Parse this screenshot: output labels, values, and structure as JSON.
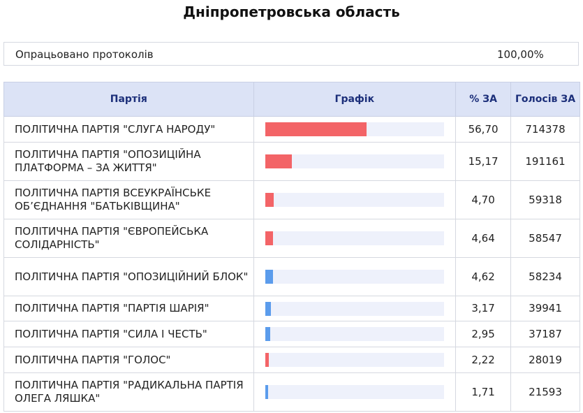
{
  "header": {
    "title": "Дніпропетровська область"
  },
  "summary": {
    "label": "Опрацьовано протоколів",
    "value": "100,00%"
  },
  "table": {
    "columns": [
      "Партія",
      "Графік",
      "% ЗА",
      "Голосів ЗА"
    ],
    "bar_range": [
      0,
      100
    ],
    "rows": [
      {
        "party": "ПОЛІТИЧНА ПАРТІЯ \"СЛУГА НАРОДУ\"",
        "percent": {
          "value": 56.7,
          "label": "56,70"
        },
        "votes": 714378,
        "bar_color": "#f36467"
      },
      {
        "party": "ПОЛІТИЧНА ПАРТІЯ \"ОПОЗИЦІЙНА ПЛАТФОРМА – ЗА ЖИТТЯ\"",
        "percent": {
          "value": 15.17,
          "label": "15,17"
        },
        "votes": 191161,
        "bar_color": "#f36467"
      },
      {
        "party": "ПОЛІТИЧНА ПАРТІЯ ВСЕУКРАЇНСЬКЕ ОБʼЄДНАННЯ \"БАТЬКІВЩИНА\"",
        "percent": {
          "value": 4.7,
          "label": "4,70"
        },
        "votes": 59318,
        "bar_color": "#f36467"
      },
      {
        "party": "ПОЛІТИЧНА ПАРТІЯ \"ЄВРОПЕЙСЬКА СОЛІДАРНІСТЬ\"",
        "percent": {
          "value": 4.64,
          "label": "4,64"
        },
        "votes": 58547,
        "bar_color": "#f36467"
      },
      {
        "party": "ПОЛІТИЧНА ПАРТІЯ \"ОПОЗИЦІЙНИЙ БЛОК\"",
        "percent": {
          "value": 4.62,
          "label": "4,62"
        },
        "votes": 58234,
        "bar_color": "#5b9cec"
      },
      {
        "party": "ПОЛІТИЧНА ПАРТІЯ \"ПАРТІЯ ШАРІЯ\"",
        "percent": {
          "value": 3.17,
          "label": "3,17"
        },
        "votes": 39941,
        "bar_color": "#5b9cec"
      },
      {
        "party": "ПОЛІТИЧНА ПАРТІЯ \"СИЛА І ЧЕСТЬ\"",
        "percent": {
          "value": 2.95,
          "label": "2,95"
        },
        "votes": 37187,
        "bar_color": "#5b9cec"
      },
      {
        "party": "ПОЛІТИЧНА ПАРТІЯ \"ГОЛОС\"",
        "percent": {
          "value": 2.22,
          "label": "2,22"
        },
        "votes": 28019,
        "bar_color": "#f36467"
      },
      {
        "party": "ПОЛІТИЧНА ПАРТІЯ \"РАДИКАЛЬНА ПАРТІЯ ОЛЕГА ЛЯШКА\"",
        "percent": {
          "value": 1.71,
          "label": "1,71"
        },
        "votes": 21593,
        "bar_color": "#5b9cec"
      }
    ]
  }
}
